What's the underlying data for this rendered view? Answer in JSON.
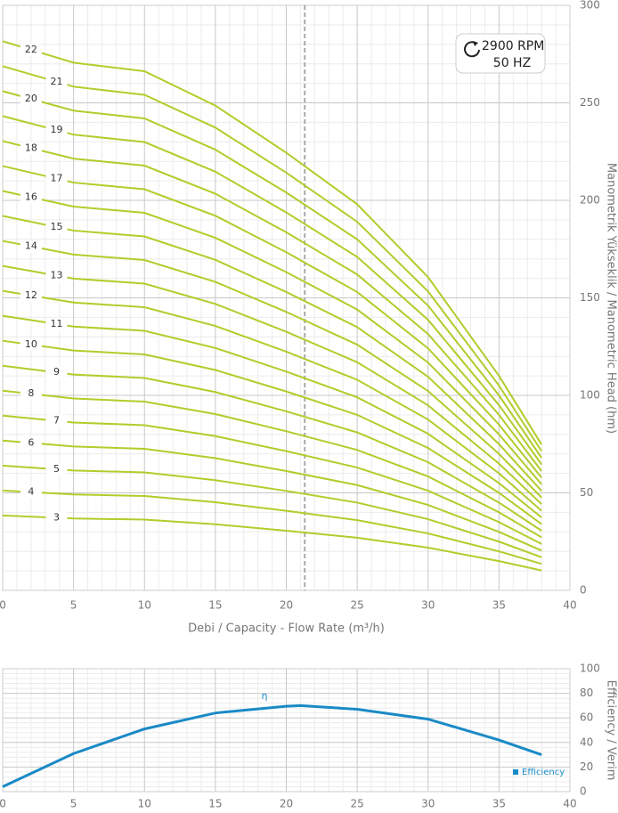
{
  "chart_data": [
    {
      "type": "line",
      "x_label": "Debi / Capacity  - Flow Rate (m³/h)",
      "y_label": "Manometrik Yükseklik  / Manometric Head (hm)",
      "annotations": [
        "2900 RPM",
        "50 HZ"
      ],
      "reference_line_x": 21.3,
      "x": [
        0,
        5,
        10,
        15,
        20,
        25,
        30,
        35,
        38
      ],
      "xlim": [
        0,
        40
      ],
      "xticks": [
        0,
        5,
        10,
        15,
        20,
        25,
        30,
        35,
        40
      ],
      "ylim": [
        0,
        300
      ],
      "yticks": [
        0,
        50,
        100,
        150,
        200,
        250,
        300
      ],
      "grid": true,
      "series": [
        {
          "name": "3",
          "color": "#b3cc2b",
          "values": [
            38.4,
            36.9,
            36.3,
            33.9,
            30.6,
            27,
            21.9,
            15,
            10.2
          ]
        },
        {
          "name": "4",
          "color": "#b3cc2b",
          "values": [
            51.2,
            49.2,
            48.4,
            45.2,
            40.8,
            36,
            29.2,
            20,
            13.6
          ]
        },
        {
          "name": "5",
          "color": "#b3cc2b",
          "values": [
            64,
            61.5,
            60.5,
            56.5,
            51,
            45,
            36.5,
            25,
            17
          ]
        },
        {
          "name": "6",
          "color": "#b3cc2b",
          "values": [
            76.8,
            73.8,
            72.6,
            67.8,
            61.2,
            54,
            43.8,
            30,
            20.4
          ]
        },
        {
          "name": "7",
          "color": "#b3cc2b",
          "values": [
            89.6,
            86.1,
            84.7,
            79.1,
            71.4,
            63,
            51.1,
            35,
            23.8
          ]
        },
        {
          "name": "8",
          "color": "#b3cc2b",
          "values": [
            102.4,
            98.4,
            96.8,
            90.4,
            81.6,
            72,
            58.4,
            40,
            27.2
          ]
        },
        {
          "name": "9",
          "color": "#b3cc2b",
          "values": [
            115.2,
            110.7,
            108.9,
            101.7,
            91.8,
            81,
            65.7,
            45,
            30.6
          ]
        },
        {
          "name": "10",
          "color": "#b3cc2b",
          "values": [
            128,
            123,
            121,
            113,
            102,
            90,
            73,
            50,
            34
          ]
        },
        {
          "name": "11",
          "color": "#b3cc2b",
          "values": [
            140.8,
            135.3,
            133.1,
            124.3,
            112.2,
            99,
            80.3,
            55,
            37.4
          ]
        },
        {
          "name": "12",
          "color": "#b3cc2b",
          "values": [
            153.6,
            147.6,
            145.2,
            135.6,
            122.4,
            108,
            87.6,
            60,
            40.8
          ]
        },
        {
          "name": "13",
          "color": "#b3cc2b",
          "values": [
            166.4,
            159.9,
            157.3,
            146.9,
            132.6,
            117,
            94.9,
            65,
            44.2
          ]
        },
        {
          "name": "14",
          "color": "#b3cc2b",
          "values": [
            179.2,
            172.2,
            169.4,
            158.2,
            142.8,
            126,
            102.2,
            70,
            47.6
          ]
        },
        {
          "name": "15",
          "color": "#b3cc2b",
          "values": [
            192,
            184.5,
            181.5,
            169.5,
            153,
            135,
            109.5,
            75,
            51
          ]
        },
        {
          "name": "16",
          "color": "#b3cc2b",
          "values": [
            204.8,
            196.8,
            193.6,
            180.8,
            163.2,
            144,
            116.8,
            80,
            54.4
          ]
        },
        {
          "name": "17",
          "color": "#b3cc2b",
          "values": [
            217.6,
            209.1,
            205.7,
            192.1,
            173.4,
            153,
            124.1,
            85,
            57.8
          ]
        },
        {
          "name": "18",
          "color": "#b3cc2b",
          "values": [
            230.4,
            221.4,
            217.8,
            203.4,
            183.6,
            162,
            131.4,
            90,
            61.2
          ]
        },
        {
          "name": "19",
          "color": "#b3cc2b",
          "values": [
            243.2,
            233.7,
            229.9,
            214.7,
            193.8,
            171,
            138.7,
            95,
            64.6
          ]
        },
        {
          "name": "20",
          "color": "#b3cc2b",
          "values": [
            256,
            246,
            242,
            226,
            204,
            180,
            146,
            100,
            68
          ]
        },
        {
          "name": "21",
          "color": "#b3cc2b",
          "values": [
            268.8,
            258.3,
            254.1,
            237.3,
            214.2,
            189,
            153.3,
            105,
            71.4
          ]
        },
        {
          "name": "22",
          "color": "#b3cc2b",
          "values": [
            281.6,
            270.6,
            266.2,
            248.6,
            224.4,
            198,
            160.6,
            110,
            74.8
          ]
        }
      ]
    },
    {
      "type": "line",
      "y_label": "Efficiency / Verim",
      "annotations": [
        "η"
      ],
      "x": [
        0,
        5,
        10,
        15,
        20,
        21,
        25,
        30,
        35,
        38
      ],
      "xlim": [
        0,
        40
      ],
      "xticks": [
        0,
        5,
        10,
        15,
        20,
        25,
        30,
        35,
        40
      ],
      "ylim": [
        0,
        100
      ],
      "yticks": [
        0,
        20,
        40,
        60,
        80,
        100
      ],
      "grid": true,
      "legend": "bottom-right",
      "series": [
        {
          "name": "Efficiency",
          "color": "#1a8ac6",
          "values": [
            4,
            31,
            51,
            64,
            69.5,
            70,
            67,
            59,
            42,
            30
          ]
        }
      ]
    }
  ]
}
